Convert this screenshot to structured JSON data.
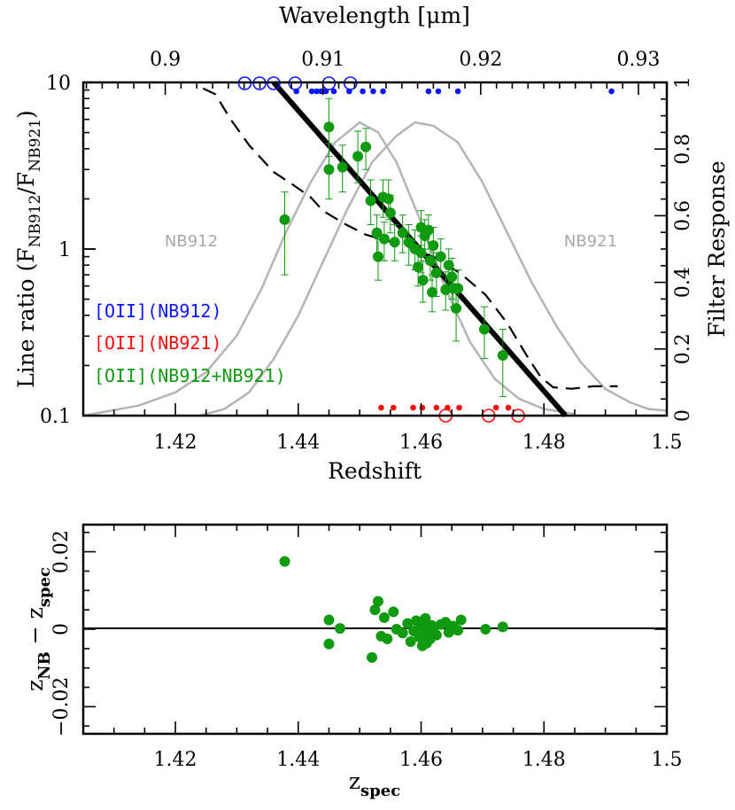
{
  "chart_data": [
    {
      "type": "scatter",
      "name": "line-ratio-vs-redshift",
      "xlabel": "Redshift",
      "ylabel": "Line ratio (F_NB912/F_NB921)",
      "y2label": "Filter Response",
      "top_xlabel": "Wavelength [μm]",
      "xlim": [
        1.405,
        1.5
      ],
      "ylim": [
        0.1,
        10
      ],
      "ylog": true,
      "y2lim": [
        0,
        1
      ],
      "top_xlim": [
        0.8948,
        0.9318
      ],
      "x_ticks": [
        "1.42",
        "1.44",
        "1.46",
        "1.48",
        "1.5"
      ],
      "y_ticks": [
        "0.1",
        "1",
        "10"
      ],
      "y2_ticks": [
        "0",
        "0.2",
        "0.4",
        "0.6",
        "0.8",
        "1"
      ],
      "top_ticks": [
        "0.9",
        "0.91",
        "0.92",
        "0.93"
      ],
      "filter_labels": {
        "left": "NB912",
        "right": "NB921"
      },
      "legend": [
        {
          "label": "[OII](NB912)",
          "color": "#0a14ff"
        },
        {
          "label": "[OII](NB921)",
          "color": "#ff0a0a"
        },
        {
          "label": "[OII](NB912+NB921)",
          "color": "#0f9a0f"
        }
      ],
      "colors": {
        "nb912": "#0a14ff",
        "nb921": "#ff0a0a",
        "both": "#0f9a0f",
        "filter": "#b4b4b4",
        "model": "#000000"
      },
      "points": [
        {
          "z": 1.4378,
          "r": 1.5,
          "lo": 0.7,
          "hi": 2.2
        },
        {
          "z": 1.445,
          "r": 5.4,
          "lo": 3.6,
          "hi": 8.0
        },
        {
          "z": 1.445,
          "r": 3.0,
          "lo": 2.0,
          "hi": 4.3
        },
        {
          "z": 1.4472,
          "r": 3.1,
          "lo": 2.2,
          "hi": 4.2
        },
        {
          "z": 1.4497,
          "r": 3.6,
          "lo": 2.5,
          "hi": 5.1
        },
        {
          "z": 1.451,
          "r": 4.1,
          "lo": 3.0,
          "hi": 5.3
        },
        {
          "z": 1.4518,
          "r": 1.95,
          "lo": 1.4,
          "hi": 2.6
        },
        {
          "z": 1.4528,
          "r": 1.25,
          "lo": 0.9,
          "hi": 1.6
        },
        {
          "z": 1.453,
          "r": 0.9,
          "lo": 0.65,
          "hi": 1.15
        },
        {
          "z": 1.4538,
          "r": 2.05,
          "lo": 1.55,
          "hi": 2.6
        },
        {
          "z": 1.4547,
          "r": 2.0,
          "lo": 1.5,
          "hi": 2.6
        },
        {
          "z": 1.454,
          "r": 1.15,
          "lo": 0.85,
          "hi": 1.45
        },
        {
          "z": 1.455,
          "r": 1.65,
          "lo": 1.25,
          "hi": 2.1
        },
        {
          "z": 1.4557,
          "r": 1.1,
          "lo": 0.85,
          "hi": 1.4
        },
        {
          "z": 1.457,
          "r": 1.25,
          "lo": 0.95,
          "hi": 1.6
        },
        {
          "z": 1.458,
          "r": 1.1,
          "lo": 0.8,
          "hi": 1.4
        },
        {
          "z": 1.459,
          "r": 1.0,
          "lo": 0.75,
          "hi": 1.3
        },
        {
          "z": 1.46,
          "r": 1.35,
          "lo": 1.05,
          "hi": 1.7
        },
        {
          "z": 1.4606,
          "r": 1.2,
          "lo": 0.9,
          "hi": 1.5
        },
        {
          "z": 1.46,
          "r": 0.95,
          "lo": 0.72,
          "hi": 1.2
        },
        {
          "z": 1.4595,
          "r": 0.78,
          "lo": 0.6,
          "hi": 1.0
        },
        {
          "z": 1.4603,
          "r": 0.65,
          "lo": 0.48,
          "hi": 0.85
        },
        {
          "z": 1.4612,
          "r": 1.3,
          "lo": 1.0,
          "hi": 1.6
        },
        {
          "z": 1.462,
          "r": 1.05,
          "lo": 0.8,
          "hi": 1.35
        },
        {
          "z": 1.4615,
          "r": 0.85,
          "lo": 0.65,
          "hi": 1.1
        },
        {
          "z": 1.4625,
          "r": 0.72,
          "lo": 0.52,
          "hi": 0.95
        },
        {
          "z": 1.4618,
          "r": 0.55,
          "lo": 0.42,
          "hi": 0.7
        },
        {
          "z": 1.4632,
          "r": 0.9,
          "lo": 0.7,
          "hi": 1.15
        },
        {
          "z": 1.464,
          "r": 0.57,
          "lo": 0.43,
          "hi": 0.73
        },
        {
          "z": 1.4645,
          "r": 0.8,
          "lo": 0.62,
          "hi": 1.0
        },
        {
          "z": 1.465,
          "r": 0.68,
          "lo": 0.5,
          "hi": 0.88
        },
        {
          "z": 1.4652,
          "r": 0.58,
          "lo": 0.45,
          "hi": 0.75
        },
        {
          "z": 1.466,
          "r": 0.58,
          "lo": 0.45,
          "hi": 0.75
        },
        {
          "z": 1.4657,
          "r": 0.44,
          "lo": 0.28,
          "hi": 0.62
        },
        {
          "z": 1.4703,
          "r": 0.33,
          "lo": 0.22,
          "hi": 0.45
        },
        {
          "z": 1.4733,
          "r": 0.23,
          "lo": 0.13,
          "hi": 0.33
        }
      ],
      "nb912_filled_z": [
        1.4397,
        1.4422,
        1.443,
        1.4437,
        1.4445,
        1.4458,
        1.4483,
        1.4505,
        1.4522,
        1.4538,
        1.4612,
        1.4628,
        1.466,
        1.491
      ],
      "nb912_open_z": [
        1.4313,
        1.4337,
        1.436,
        1.4395,
        1.445,
        1.4485
      ],
      "nb921_filled_z": [
        1.4535,
        1.4555,
        1.4587,
        1.4602,
        1.4625,
        1.4643,
        1.4662,
        1.4722,
        1.4742
      ],
      "nb921_open_z": [
        1.464,
        1.471,
        1.4758
      ],
      "model_line": [
        [
          1.436,
          10
        ],
        [
          1.4835,
          0.1
        ]
      ],
      "dashed_line": [
        [
          1.4245,
          9.2
        ],
        [
          1.4265,
          8.5
        ],
        [
          1.429,
          6.0
        ],
        [
          1.432,
          4.2
        ],
        [
          1.436,
          2.9
        ],
        [
          1.439,
          2.45
        ],
        [
          1.442,
          2.05
        ],
        [
          1.444,
          1.7
        ],
        [
          1.4475,
          1.42
        ],
        [
          1.451,
          1.22
        ],
        [
          1.4545,
          1.12
        ],
        [
          1.4585,
          1.02
        ],
        [
          1.4625,
          0.88
        ],
        [
          1.4665,
          0.71
        ],
        [
          1.4705,
          0.53
        ],
        [
          1.474,
          0.36
        ],
        [
          1.4775,
          0.22
        ],
        [
          1.4795,
          0.17
        ],
        [
          1.4815,
          0.148
        ],
        [
          1.4845,
          0.145
        ],
        [
          1.488,
          0.15
        ],
        [
          1.492,
          0.15
        ]
      ],
      "nb912_curve": [
        [
          1.405,
          0.0
        ],
        [
          1.414,
          0.03
        ],
        [
          1.42,
          0.07
        ],
        [
          1.425,
          0.13
        ],
        [
          1.43,
          0.24
        ],
        [
          1.434,
          0.38
        ],
        [
          1.438,
          0.55
        ],
        [
          1.442,
          0.7
        ],
        [
          1.446,
          0.82
        ],
        [
          1.45,
          0.88
        ],
        [
          1.453,
          0.85
        ],
        [
          1.456,
          0.76
        ],
        [
          1.46,
          0.58
        ],
        [
          1.464,
          0.38
        ],
        [
          1.468,
          0.22
        ],
        [
          1.472,
          0.11
        ],
        [
          1.476,
          0.05
        ],
        [
          1.48,
          0.02
        ],
        [
          1.485,
          0.005
        ]
      ],
      "nb921_curve": [
        [
          1.424,
          0.0
        ],
        [
          1.428,
          0.02
        ],
        [
          1.432,
          0.07
        ],
        [
          1.436,
          0.17
        ],
        [
          1.44,
          0.3
        ],
        [
          1.444,
          0.46
        ],
        [
          1.448,
          0.62
        ],
        [
          1.452,
          0.76
        ],
        [
          1.456,
          0.84
        ],
        [
          1.459,
          0.88
        ],
        [
          1.462,
          0.87
        ],
        [
          1.466,
          0.82
        ],
        [
          1.47,
          0.7
        ],
        [
          1.474,
          0.55
        ],
        [
          1.478,
          0.4
        ],
        [
          1.482,
          0.27
        ],
        [
          1.486,
          0.16
        ],
        [
          1.49,
          0.08
        ],
        [
          1.494,
          0.04
        ],
        [
          1.497,
          0.02
        ],
        [
          1.5,
          0.015
        ]
      ]
    },
    {
      "type": "scatter",
      "name": "residuals",
      "xlabel": "z_spec",
      "ylabel": "z_NB − z_spec",
      "xlim": [
        1.405,
        1.5
      ],
      "ylim": [
        -0.027,
        0.027
      ],
      "x_ticks": [
        "1.42",
        "1.44",
        "1.46",
        "1.48",
        "1.5"
      ],
      "y_ticks": [
        "−0.02",
        "0",
        "0.02"
      ],
      "points": [
        {
          "z": 1.4378,
          "dz": 0.0175
        },
        {
          "z": 1.445,
          "dz": 0.0024
        },
        {
          "z": 1.445,
          "dz": -0.0038
        },
        {
          "z": 1.4468,
          "dz": 0.0002
        },
        {
          "z": 1.452,
          "dz": -0.0073
        },
        {
          "z": 1.4525,
          "dz": 0.005
        },
        {
          "z": 1.453,
          "dz": 0.0072
        },
        {
          "z": 1.4535,
          "dz": -0.0018
        },
        {
          "z": 1.454,
          "dz": 0.003
        },
        {
          "z": 1.4545,
          "dz": -0.0025
        },
        {
          "z": 1.4555,
          "dz": 0.0045
        },
        {
          "z": 1.456,
          "dz": 0.0
        },
        {
          "z": 1.457,
          "dz": -0.001
        },
        {
          "z": 1.4578,
          "dz": 0.0015
        },
        {
          "z": 1.4583,
          "dz": -0.0032
        },
        {
          "z": 1.4588,
          "dz": -0.0005
        },
        {
          "z": 1.4592,
          "dz": 0.0022
        },
        {
          "z": 1.4597,
          "dz": -0.002
        },
        {
          "z": 1.46,
          "dz": 0.0008
        },
        {
          "z": 1.4602,
          "dz": -0.0043
        },
        {
          "z": 1.4605,
          "dz": -0.0012
        },
        {
          "z": 1.4607,
          "dz": 0.0028
        },
        {
          "z": 1.4609,
          "dz": -0.0036
        },
        {
          "z": 1.4612,
          "dz": 0.0003
        },
        {
          "z": 1.4615,
          "dz": -0.0025
        },
        {
          "z": 1.4617,
          "dz": 0.001
        },
        {
          "z": 1.462,
          "dz": -0.0007
        },
        {
          "z": 1.4625,
          "dz": -0.0015
        },
        {
          "z": 1.4632,
          "dz": 0.0012
        },
        {
          "z": 1.464,
          "dz": 0.0018
        },
        {
          "z": 1.4645,
          "dz": -0.0008
        },
        {
          "z": 1.4652,
          "dz": 0.0008
        },
        {
          "z": 1.466,
          "dz": -0.0003
        },
        {
          "z": 1.4665,
          "dz": 0.0024
        },
        {
          "z": 1.4705,
          "dz": 0.0
        },
        {
          "z": 1.4733,
          "dz": 0.0006
        }
      ]
    }
  ]
}
